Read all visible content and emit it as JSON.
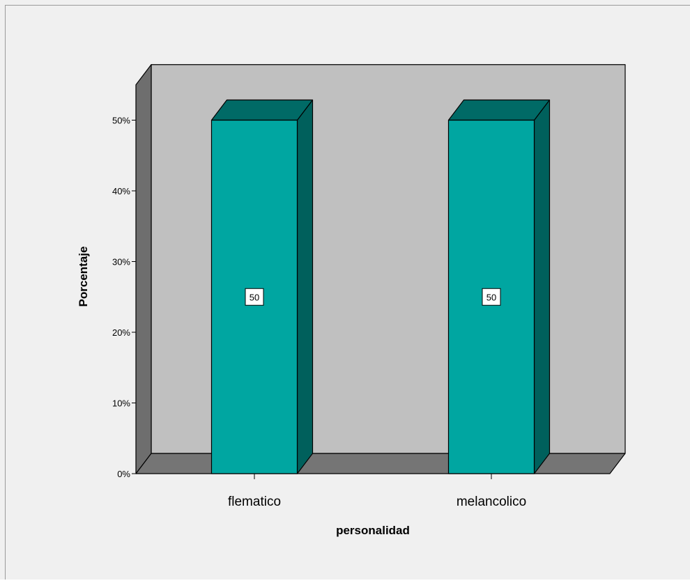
{
  "chart_data": {
    "type": "bar",
    "title": "",
    "xlabel": "personalidad",
    "ylabel": "Porcentaje",
    "categories": [
      "flematico",
      "melancolico"
    ],
    "values": [
      50,
      50
    ],
    "data_labels": [
      "50",
      "50"
    ],
    "ylim": [
      0,
      55
    ],
    "yticks": [
      0,
      10,
      20,
      30,
      40,
      50
    ],
    "ytick_labels": [
      "0%",
      "10%",
      "20%",
      "30%",
      "40%",
      "50%"
    ],
    "grid": false,
    "three_d": true,
    "colors": {
      "background": "#f0f0f0",
      "plot_back_wall": "#c0c0c0",
      "plot_side_wall": "#6e6e6e",
      "plot_floor": "#757575",
      "bar_front": "#00a6a1",
      "bar_top": "#006a66",
      "bar_side": "#00605c",
      "border": "#000000",
      "label_box": "#ffffff"
    }
  }
}
